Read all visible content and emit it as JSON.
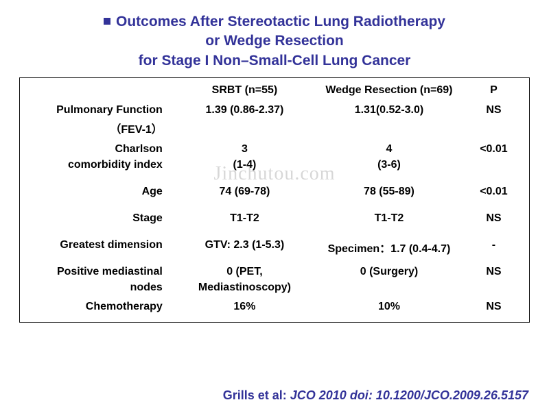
{
  "title": {
    "line1": "Outcomes After Stereotactic Lung Radiotherapy",
    "line2": "or Wedge Resection",
    "line3": "for Stage I Non–Small-Cell Lung Cancer",
    "color": "#333399",
    "fontsize": 21
  },
  "table": {
    "columns": [
      "",
      "SRBT (n=55)",
      "Wedge Resection (n=69)",
      "P"
    ],
    "column_widths_pct": [
      30,
      28,
      30,
      12
    ],
    "body_fontsize": 16,
    "rows": [
      {
        "label": "Pulmonary Function",
        "label2": "（FEV-1）",
        "srbt": "1.39 (0.86-2.37)",
        "wedge": "1.31(0.52-3.0)",
        "p": "NS"
      },
      {
        "label": "Charlson",
        "label2": "comorbidity index",
        "srbt": "3",
        "srbt2": "(1-4)",
        "wedge": "4",
        "wedge2": "(3-6)",
        "p": "<0.01"
      },
      {
        "label": "Age",
        "srbt": "74 (69-78)",
        "wedge": "78 (55-89)",
        "p": "<0.01"
      },
      {
        "label": "Stage",
        "srbt": "T1-T2",
        "wedge": "T1-T2",
        "p": "NS"
      },
      {
        "label": "Greatest dimension",
        "srbt": "GTV: 2.3 (1-5.3)",
        "wedge": "Specimen：1.7 (0.4-4.7)",
        "p": "-"
      },
      {
        "label": "Positive mediastinal",
        "label2": "nodes",
        "srbt": "0 (PET,",
        "srbt2": "Mediastinoscopy)",
        "wedge": "0 (Surgery)",
        "p": "NS"
      },
      {
        "label": "Chemotherapy",
        "srbt": "16%",
        "wedge": "10%",
        "p": "NS"
      }
    ],
    "border_color": "#111111",
    "background_color": "#ffffff"
  },
  "watermark": {
    "text": "Jinchutou.com",
    "color_rgba": "rgba(140,140,140,0.35)",
    "fontsize": 28
  },
  "citation": {
    "prefix": "Grills et al: ",
    "journal": "JCO 2010 doi: 10.1200/JCO.2009.26.5157",
    "color": "#333399",
    "fontsize": 18
  }
}
